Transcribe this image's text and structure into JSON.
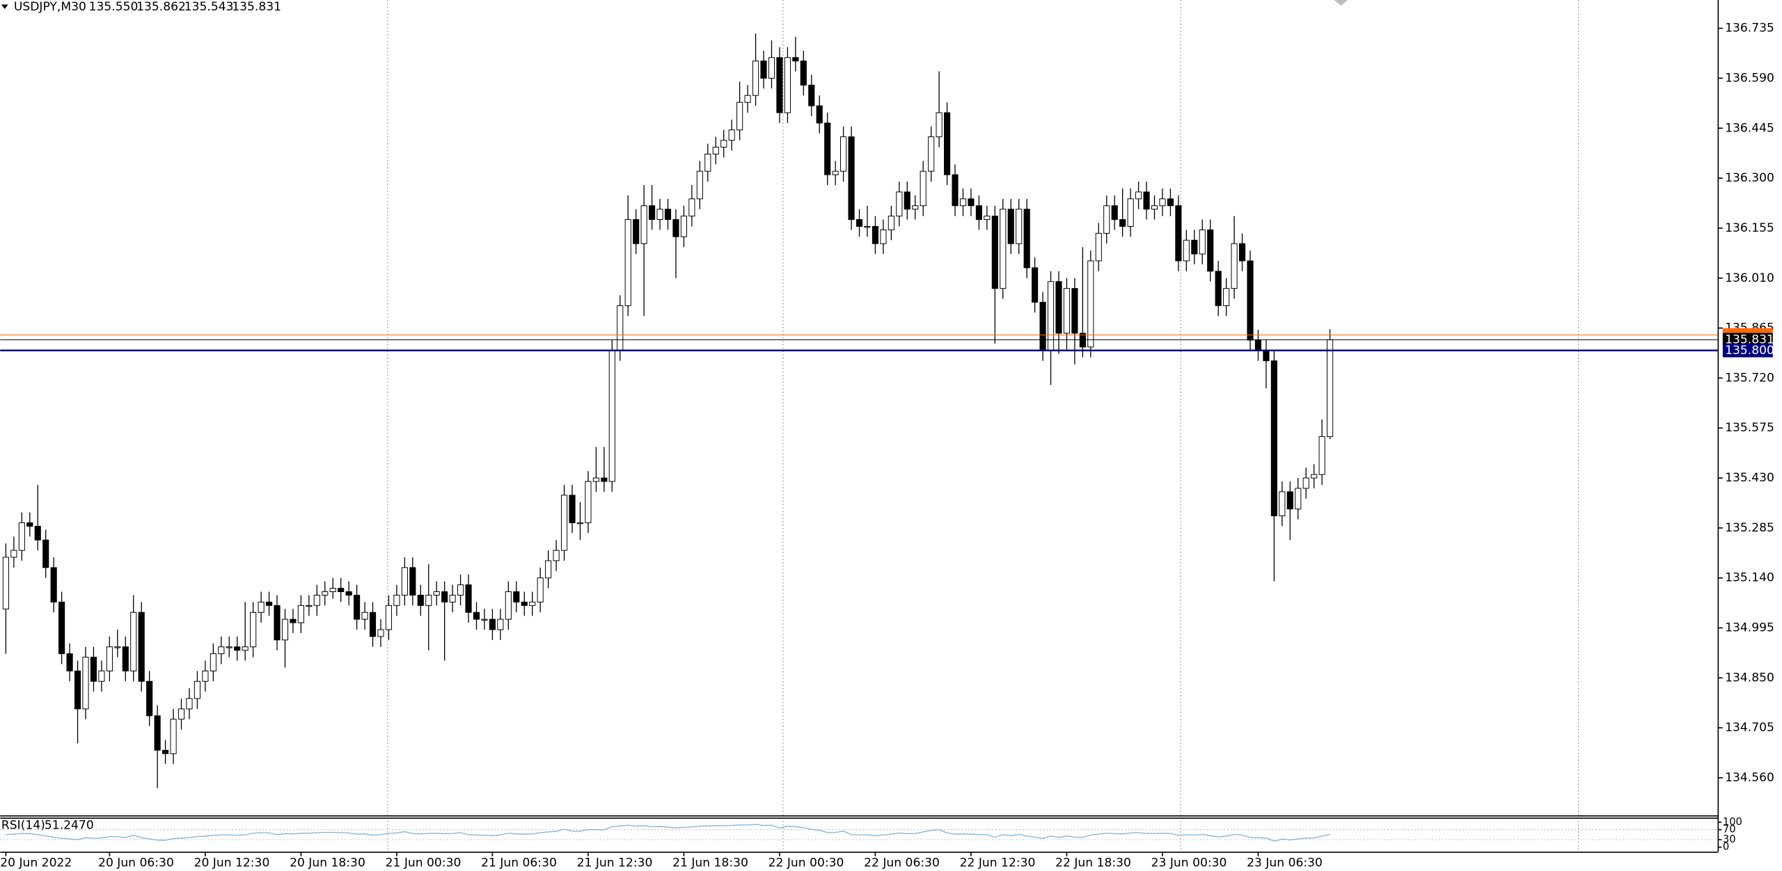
{
  "chart_data": {
    "type": "candlestick",
    "title": "USDJPY,M30",
    "title_values": [
      "135.550",
      "135.862",
      "135.543",
      "135.831"
    ],
    "up_color": "#ffffff",
    "down_color": "#000000",
    "ohlc": [
      [
        135.05,
        135.24,
        134.92,
        135.2
      ],
      [
        135.2,
        135.26,
        135.17,
        135.22
      ],
      [
        135.22,
        135.33,
        135.19,
        135.3
      ],
      [
        135.3,
        135.33,
        135.26,
        135.29
      ],
      [
        135.29,
        135.41,
        135.22,
        135.25
      ],
      [
        135.25,
        135.28,
        135.14,
        135.17
      ],
      [
        135.17,
        135.2,
        135.04,
        135.07
      ],
      [
        135.07,
        135.1,
        134.89,
        134.92
      ],
      [
        134.92,
        134.95,
        134.84,
        134.87
      ],
      [
        134.87,
        134.9,
        134.66,
        134.76
      ],
      [
        134.76,
        134.94,
        134.73,
        134.91
      ],
      [
        134.91,
        134.94,
        134.81,
        134.84
      ],
      [
        134.84,
        134.9,
        134.81,
        134.87
      ],
      [
        134.87,
        134.97,
        134.84,
        134.94
      ],
      [
        134.94,
        134.99,
        134.91,
        134.94
      ],
      [
        134.94,
        134.97,
        134.84,
        134.87
      ],
      [
        134.87,
        135.09,
        134.84,
        135.04
      ],
      [
        135.04,
        135.07,
        134.81,
        134.84
      ],
      [
        134.84,
        134.87,
        134.71,
        134.74
      ],
      [
        134.74,
        134.77,
        134.53,
        134.64
      ],
      [
        134.64,
        134.67,
        134.6,
        134.63
      ],
      [
        134.63,
        134.76,
        134.6,
        134.73
      ],
      [
        134.73,
        134.79,
        134.7,
        134.76
      ],
      [
        134.76,
        134.82,
        134.73,
        134.79
      ],
      [
        134.79,
        134.87,
        134.76,
        134.84
      ],
      [
        134.84,
        134.9,
        134.81,
        134.87
      ],
      [
        134.87,
        134.95,
        134.84,
        134.92
      ],
      [
        134.92,
        134.97,
        134.89,
        134.94
      ],
      [
        134.94,
        134.97,
        134.91,
        134.94
      ],
      [
        134.94,
        134.97,
        134.9,
        134.93
      ],
      [
        134.93,
        135.07,
        134.9,
        134.94
      ],
      [
        134.94,
        135.07,
        134.91,
        135.04
      ],
      [
        135.04,
        135.1,
        135.01,
        135.07
      ],
      [
        135.07,
        135.1,
        135.03,
        135.06
      ],
      [
        135.06,
        135.09,
        134.93,
        134.96
      ],
      [
        134.96,
        135.05,
        134.88,
        135.02
      ],
      [
        135.02,
        135.05,
        134.98,
        135.01
      ],
      [
        135.01,
        135.09,
        134.98,
        135.06
      ],
      [
        135.06,
        135.09,
        135.03,
        135.06
      ],
      [
        135.06,
        135.12,
        135.03,
        135.09
      ],
      [
        135.09,
        135.13,
        135.06,
        135.1
      ],
      [
        135.1,
        135.14,
        135.08,
        135.11
      ],
      [
        135.11,
        135.14,
        135.07,
        135.1
      ],
      [
        135.1,
        135.13,
        135.06,
        135.09
      ],
      [
        135.09,
        135.12,
        134.99,
        135.02
      ],
      [
        135.02,
        135.07,
        134.99,
        135.04
      ],
      [
        135.04,
        135.07,
        134.94,
        134.97
      ],
      [
        134.97,
        135.02,
        134.94,
        134.99
      ],
      [
        134.99,
        135.09,
        134.96,
        135.06
      ],
      [
        135.06,
        135.12,
        135.03,
        135.09
      ],
      [
        135.09,
        135.2,
        135.06,
        135.17
      ],
      [
        135.17,
        135.2,
        135.06,
        135.09
      ],
      [
        135.09,
        135.12,
        135.03,
        135.06
      ],
      [
        135.06,
        135.18,
        134.93,
        135.09
      ],
      [
        135.09,
        135.13,
        135.06,
        135.1
      ],
      [
        135.1,
        135.13,
        134.9,
        135.07
      ],
      [
        135.07,
        135.12,
        135.04,
        135.09
      ],
      [
        135.09,
        135.15,
        135.06,
        135.12
      ],
      [
        135.12,
        135.15,
        135.01,
        135.04
      ],
      [
        135.04,
        135.07,
        134.99,
        135.02
      ],
      [
        135.02,
        135.05,
        134.99,
        135.02
      ],
      [
        135.02,
        135.05,
        134.96,
        134.99
      ],
      [
        134.99,
        135.05,
        134.96,
        135.02
      ],
      [
        135.02,
        135.13,
        134.99,
        135.1
      ],
      [
        135.1,
        135.13,
        135.04,
        135.07
      ],
      [
        135.07,
        135.1,
        135.03,
        135.06
      ],
      [
        135.06,
        135.1,
        135.03,
        135.07
      ],
      [
        135.07,
        135.17,
        135.04,
        135.14
      ],
      [
        135.14,
        135.22,
        135.11,
        135.19
      ],
      [
        135.19,
        135.25,
        135.16,
        135.22
      ],
      [
        135.22,
        135.41,
        135.19,
        135.38
      ],
      [
        135.38,
        135.41,
        135.27,
        135.3
      ],
      [
        135.3,
        135.36,
        135.25,
        135.3
      ],
      [
        135.3,
        135.45,
        135.27,
        135.42
      ],
      [
        135.42,
        135.52,
        135.39,
        135.43
      ],
      [
        135.43,
        135.52,
        135.39,
        135.42
      ],
      [
        135.42,
        135.83,
        135.39,
        135.8
      ],
      [
        135.8,
        135.96,
        135.77,
        135.93
      ],
      [
        135.93,
        136.25,
        135.9,
        136.18
      ],
      [
        136.18,
        136.21,
        136.08,
        136.11
      ],
      [
        136.11,
        136.28,
        135.9,
        136.22
      ],
      [
        136.22,
        136.28,
        136.15,
        136.18
      ],
      [
        136.18,
        136.24,
        136.15,
        136.21
      ],
      [
        136.21,
        136.24,
        136.15,
        136.18
      ],
      [
        136.18,
        136.21,
        136.01,
        136.13
      ],
      [
        136.13,
        136.22,
        136.1,
        136.19
      ],
      [
        136.19,
        136.28,
        136.16,
        136.24
      ],
      [
        136.24,
        136.35,
        136.21,
        136.32
      ],
      [
        136.32,
        136.4,
        136.29,
        136.37
      ],
      [
        136.37,
        136.42,
        136.34,
        136.39
      ],
      [
        136.39,
        136.44,
        136.36,
        136.41
      ],
      [
        136.41,
        136.47,
        136.38,
        136.44
      ],
      [
        136.44,
        136.58,
        136.41,
        136.52
      ],
      [
        136.52,
        136.57,
        136.49,
        136.54
      ],
      [
        136.54,
        136.72,
        136.51,
        136.64
      ],
      [
        136.64,
        136.67,
        136.56,
        136.59
      ],
      [
        136.59,
        136.7,
        136.56,
        136.65
      ],
      [
        136.65,
        136.68,
        136.46,
        136.49
      ],
      [
        136.49,
        136.68,
        136.46,
        136.65
      ],
      [
        136.65,
        136.71,
        136.61,
        136.64
      ],
      [
        136.64,
        136.67,
        136.54,
        136.57
      ],
      [
        136.57,
        136.6,
        136.48,
        136.51
      ],
      [
        136.51,
        136.54,
        136.43,
        136.46
      ],
      [
        136.46,
        136.49,
        136.28,
        136.31
      ],
      [
        136.31,
        136.35,
        136.28,
        136.32
      ],
      [
        136.32,
        136.45,
        136.29,
        136.42
      ],
      [
        136.42,
        136.45,
        136.15,
        136.18
      ],
      [
        136.18,
        136.21,
        136.13,
        136.16
      ],
      [
        136.16,
        136.22,
        136.13,
        136.16
      ],
      [
        136.16,
        136.19,
        136.08,
        136.11
      ],
      [
        136.11,
        136.18,
        136.08,
        136.15
      ],
      [
        136.15,
        136.22,
        136.12,
        136.19
      ],
      [
        136.19,
        136.29,
        136.16,
        136.26
      ],
      [
        136.26,
        136.29,
        136.18,
        136.21
      ],
      [
        136.21,
        136.25,
        136.18,
        136.22
      ],
      [
        136.22,
        136.35,
        136.19,
        136.32
      ],
      [
        136.32,
        136.45,
        136.29,
        136.42
      ],
      [
        136.42,
        136.61,
        136.39,
        136.49
      ],
      [
        136.49,
        136.52,
        136.28,
        136.31
      ],
      [
        136.31,
        136.34,
        136.19,
        136.22
      ],
      [
        136.22,
        136.27,
        136.19,
        136.24
      ],
      [
        136.24,
        136.27,
        136.19,
        136.22
      ],
      [
        136.22,
        136.25,
        136.15,
        136.18
      ],
      [
        136.18,
        136.22,
        136.15,
        136.19
      ],
      [
        136.19,
        136.22,
        135.82,
        135.98
      ],
      [
        135.98,
        136.24,
        135.95,
        136.21
      ],
      [
        136.21,
        136.24,
        136.08,
        136.11
      ],
      [
        136.11,
        136.24,
        136.08,
        136.21
      ],
      [
        136.21,
        136.24,
        136.01,
        136.04
      ],
      [
        136.04,
        136.07,
        135.91,
        135.94
      ],
      [
        135.94,
        135.97,
        135.77,
        135.8
      ],
      [
        135.8,
        136.03,
        135.7,
        136.0
      ],
      [
        136.0,
        136.03,
        135.79,
        135.85
      ],
      [
        135.85,
        136.01,
        135.8,
        135.98
      ],
      [
        135.98,
        136.01,
        135.76,
        135.85
      ],
      [
        135.85,
        136.1,
        135.78,
        135.81
      ],
      [
        135.81,
        136.09,
        135.78,
        136.06
      ],
      [
        136.06,
        136.17,
        136.03,
        136.14
      ],
      [
        136.14,
        136.25,
        136.11,
        136.22
      ],
      [
        136.22,
        136.25,
        136.15,
        136.18
      ],
      [
        136.18,
        136.27,
        136.13,
        136.16
      ],
      [
        136.16,
        136.27,
        136.13,
        136.24
      ],
      [
        136.24,
        136.29,
        136.21,
        136.26
      ],
      [
        136.26,
        136.29,
        136.18,
        136.21
      ],
      [
        136.21,
        136.25,
        136.18,
        136.22
      ],
      [
        136.22,
        136.27,
        136.19,
        136.24
      ],
      [
        136.24,
        136.27,
        136.19,
        136.22
      ],
      [
        136.22,
        136.25,
        136.03,
        136.06
      ],
      [
        136.06,
        136.15,
        136.03,
        136.12
      ],
      [
        136.12,
        136.15,
        136.05,
        136.08
      ],
      [
        136.08,
        136.18,
        136.05,
        136.15
      ],
      [
        136.15,
        136.18,
        136.0,
        136.03
      ],
      [
        136.03,
        136.06,
        135.9,
        135.93
      ],
      [
        135.93,
        136.01,
        135.9,
        135.98
      ],
      [
        135.98,
        136.19,
        135.95,
        136.11
      ],
      [
        136.11,
        136.14,
        136.03,
        136.06
      ],
      [
        136.06,
        136.09,
        135.8,
        135.83
      ],
      [
        135.83,
        135.86,
        135.77,
        135.8
      ],
      [
        135.8,
        135.83,
        135.69,
        135.77
      ],
      [
        135.77,
        135.8,
        135.13,
        135.32
      ],
      [
        135.32,
        135.42,
        135.29,
        135.39
      ],
      [
        135.39,
        135.42,
        135.25,
        135.34
      ],
      [
        135.34,
        135.43,
        135.31,
        135.4
      ],
      [
        135.4,
        135.46,
        135.37,
        135.43
      ],
      [
        135.43,
        135.47,
        135.4,
        135.44
      ],
      [
        135.44,
        135.6,
        135.41,
        135.55
      ],
      [
        135.55,
        135.862,
        135.543,
        135.831
      ]
    ],
    "ylim": [
      134.451,
      136.817
    ],
    "yticks": [
      136.735,
      {
        "value": 136.59,
        "label": "136.590"
      },
      136.445,
      {
        "value": 136.3,
        "label": "136.300"
      },
      136.155,
      {
        "value": 136.01,
        "label": "136.010"
      },
      135.865,
      {
        "value": 135.72,
        "label": "135.720"
      },
      135.575,
      {
        "value": 135.43,
        "label": "135.430"
      },
      135.285,
      {
        "value": 135.14,
        "label": "135.140"
      },
      134.995,
      {
        "value": 134.85,
        "label": "134.850"
      },
      134.705,
      {
        "value": 134.56,
        "label": "134.560"
      }
    ],
    "xticks": [
      {
        "value": 0,
        "label": "20 Jun 2022"
      },
      {
        "value": 13,
        "label": "20 Jun 06:30"
      },
      {
        "value": 25,
        "label": "20 Jun 12:30"
      },
      {
        "value": 37,
        "label": "20 Jun 18:30"
      },
      {
        "value": 49,
        "label": "21 Jun 00:30"
      },
      {
        "value": 61,
        "label": "21 Jun 06:30"
      },
      {
        "value": 73,
        "label": "21 Jun 12:30"
      },
      {
        "value": 85,
        "label": "21 Jun 18:30"
      },
      {
        "value": 97,
        "label": "22 Jun 00:30"
      },
      {
        "value": 109,
        "label": "22 Jun 06:30"
      },
      {
        "value": 121,
        "label": "22 Jun 12:30"
      },
      {
        "value": 133,
        "label": "22 Jun 18:30"
      },
      {
        "value": 145,
        "label": "23 Jun 00:30"
      },
      {
        "value": 157,
        "label": "23 Jun 06:30"
      }
    ],
    "price_levels": [
      {
        "value": 135.845,
        "color": "#ff6a00"
      },
      {
        "value": 135.831,
        "color": "#000000"
      },
      {
        "value": 135.8,
        "label": "135.800",
        "color": "#000080"
      }
    ],
    "rsi": {
      "name": "RSI(14)",
      "current_label": "51.2470",
      "color": "#7fb2d9",
      "ylim": [
        0,
        100
      ],
      "yticks": [
        0,
        30,
        70,
        100
      ],
      "levels": [
        30,
        70
      ],
      "values": [
        50,
        52,
        55,
        54,
        50,
        45,
        40,
        35,
        33,
        30,
        38,
        35,
        37,
        42,
        42,
        38,
        48,
        38,
        33,
        28,
        28,
        34,
        36,
        38,
        42,
        44,
        47,
        49,
        49,
        48,
        49,
        56,
        58,
        57,
        50,
        54,
        53,
        56,
        56,
        58,
        59,
        59,
        58,
        57,
        52,
        53,
        48,
        50,
        55,
        57,
        62,
        55,
        53,
        55,
        56,
        54,
        55,
        58,
        50,
        48,
        48,
        46,
        49,
        56,
        53,
        52,
        53,
        58,
        61,
        63,
        72,
        64,
        64,
        70,
        70,
        69,
        82,
        85,
        88,
        84,
        86,
        82,
        83,
        80,
        77,
        79,
        81,
        84,
        85,
        86,
        86,
        87,
        89,
        89,
        91,
        87,
        88,
        76,
        84,
        82,
        78,
        71,
        68,
        58,
        59,
        64,
        50,
        49,
        49,
        46,
        49,
        52,
        57,
        54,
        55,
        61,
        67,
        70,
        57,
        52,
        53,
        52,
        50,
        50,
        40,
        50,
        46,
        51,
        44,
        40,
        35,
        45,
        39,
        45,
        40,
        39,
        49,
        52,
        56,
        54,
        53,
        57,
        58,
        55,
        55,
        56,
        55,
        47,
        50,
        48,
        51,
        46,
        41,
        44,
        51,
        48,
        39,
        38,
        36,
        24,
        32,
        29,
        33,
        36,
        37,
        44,
        51.247
      ]
    }
  }
}
